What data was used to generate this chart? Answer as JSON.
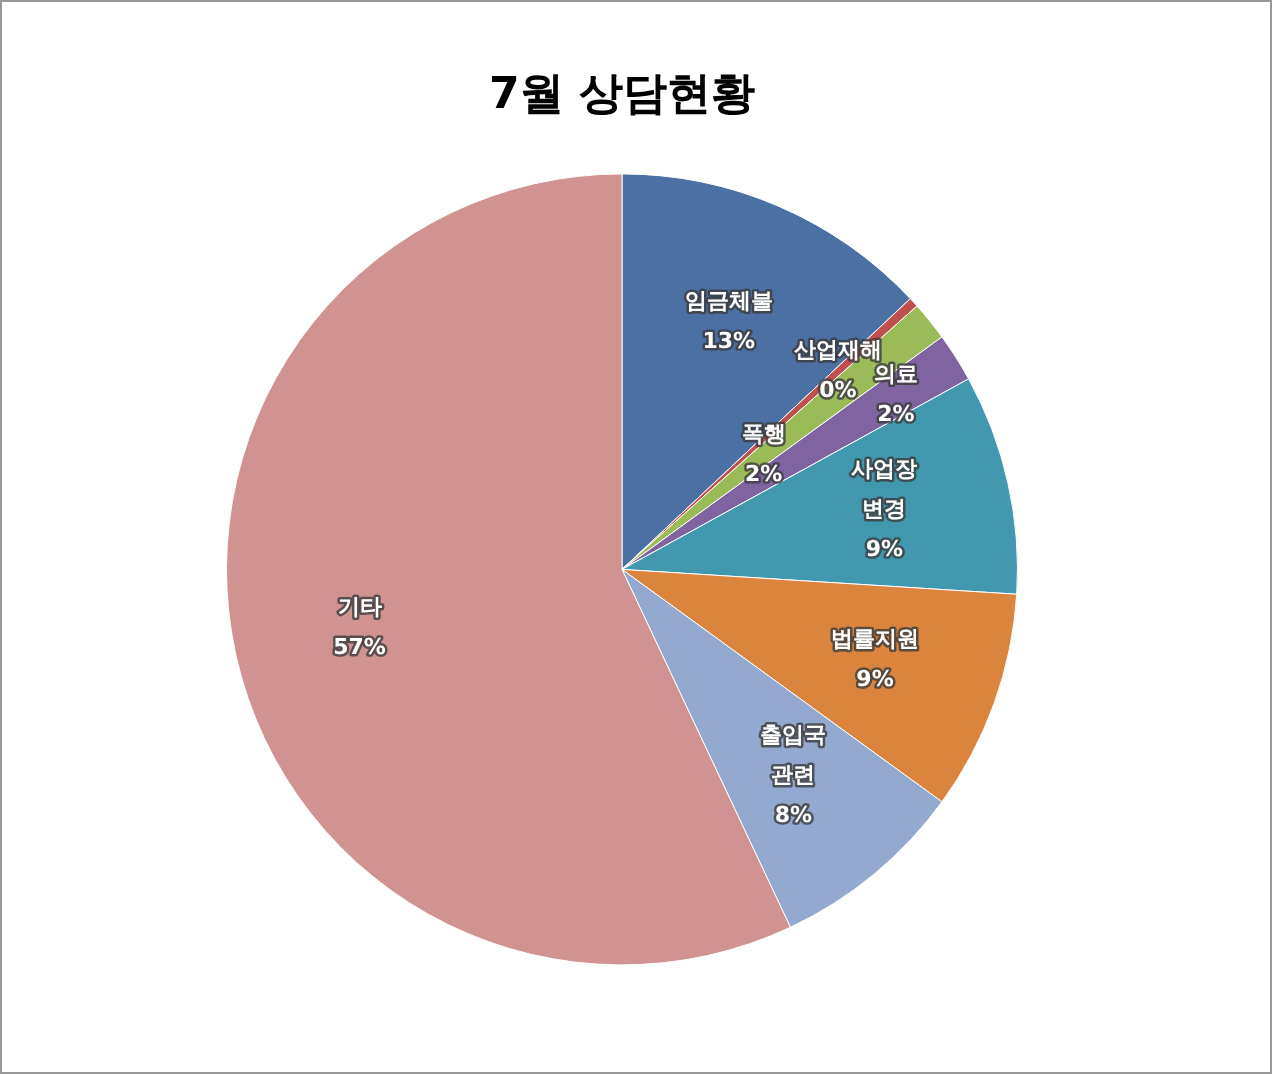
{
  "chart_data": {
    "type": "pie",
    "title": "7월 상담현황",
    "categories": [
      "임금체불",
      "산업재해",
      "폭행",
      "의료",
      "사업장 변경",
      "법률지원",
      "출입국 관련",
      "기타"
    ],
    "values": [
      13,
      0.4,
      1.6,
      2,
      9,
      9,
      8,
      57
    ],
    "value_labels": [
      "13%",
      "0%",
      "2%",
      "2%",
      "9%",
      "9%",
      "8%",
      "57%"
    ],
    "colors": [
      "#4a70a4",
      "#c0504d",
      "#9bbb59",
      "#8064a2",
      "#4198af",
      "#db843d",
      "#93a9cf",
      "#d19392"
    ],
    "legend": false
  }
}
